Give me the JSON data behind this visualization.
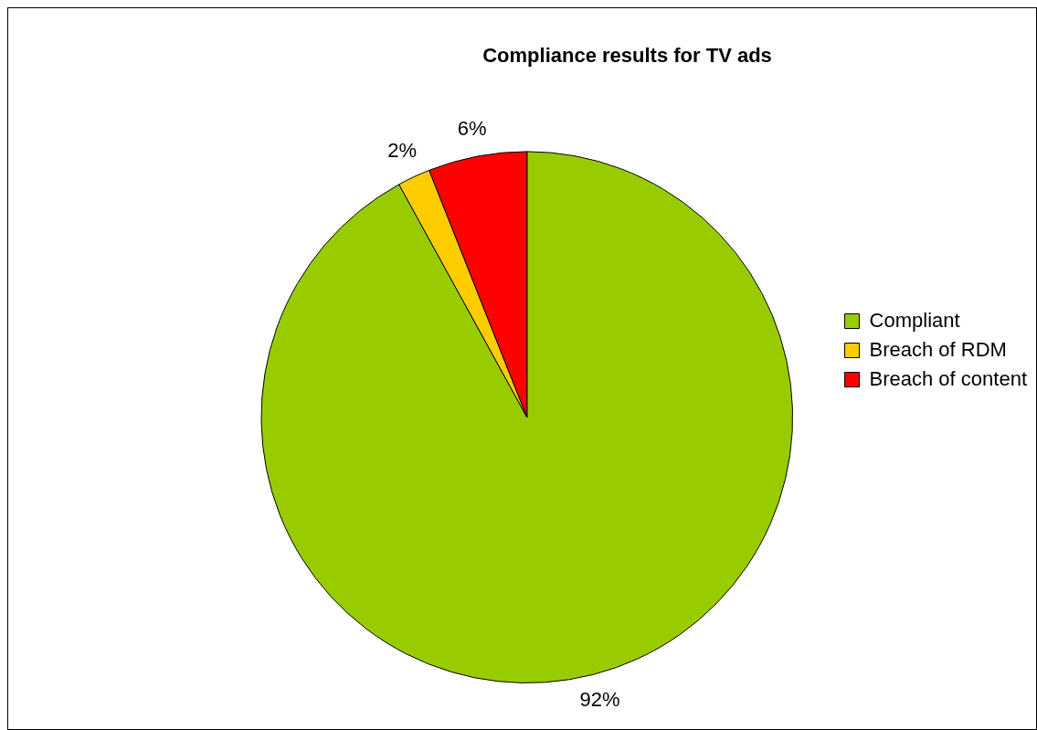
{
  "chart_data": {
    "type": "pie",
    "title": "Compliance results for TV ads",
    "categories": [
      "Compliant",
      "Breach of RDM",
      "Breach of content"
    ],
    "values": [
      92,
      2,
      6
    ],
    "colors": [
      "#99cc00",
      "#ffcc00",
      "#ff0000"
    ],
    "value_labels": [
      "92%",
      "2%",
      "6%"
    ],
    "legend": "right"
  }
}
